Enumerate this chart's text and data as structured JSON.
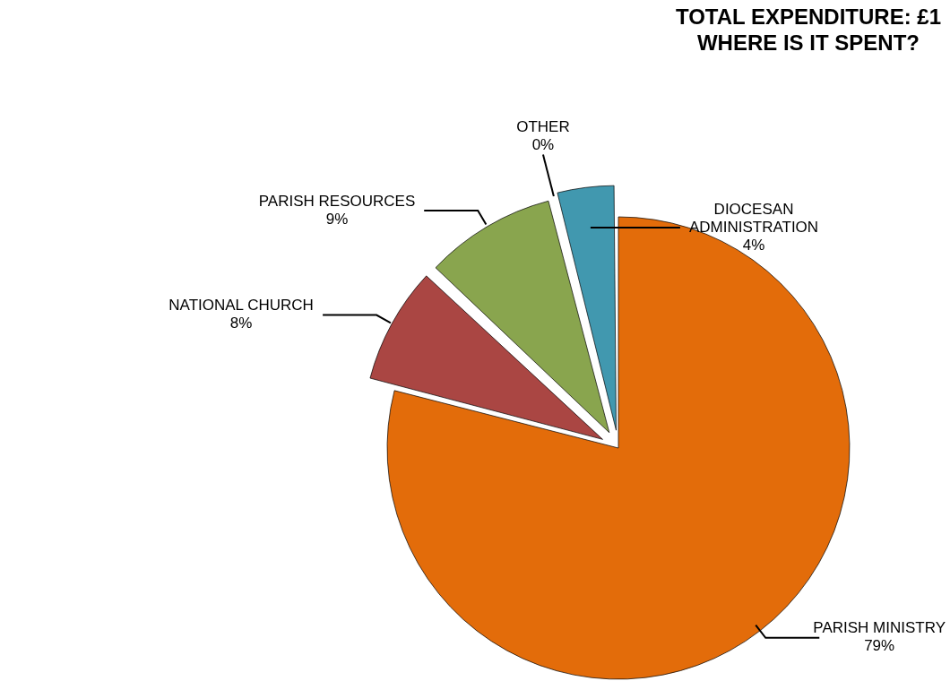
{
  "chart_data": {
    "type": "pie",
    "title": "TOTAL EXPENDITURE: £1\nWHERE IS IT SPENT?",
    "categories": [
      "PARISH MINISTRY",
      "NATIONAL CHURCH",
      "PARISH RESOURCES",
      "OTHER",
      "DIOCESAN ADMINISTRATION"
    ],
    "values": [
      79,
      8,
      9,
      0,
      4
    ],
    "colors": [
      "#e36c0a",
      "#aa4643",
      "#89a54e",
      "#71588f",
      "#4198af"
    ],
    "value_labels": [
      "79%",
      "8%",
      "9%",
      "0%",
      "4%"
    ],
    "legend": false
  }
}
